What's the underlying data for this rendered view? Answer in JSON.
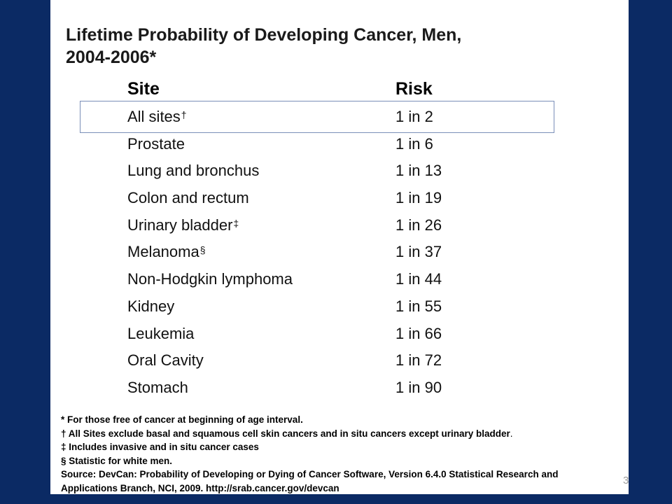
{
  "slide": {
    "title_line1": "Lifetime Probability of Developing Cancer, Men,",
    "title_line2": "2004-2006*",
    "table": {
      "headers": {
        "site": "Site",
        "risk": "Risk"
      },
      "rows": [
        {
          "site": "All sites",
          "mark": "†",
          "risk": "1 in 2"
        },
        {
          "site": "Prostate",
          "mark": "",
          "risk": "1 in 6"
        },
        {
          "site": "Lung and bronchus",
          "mark": "",
          "risk": "1 in 13"
        },
        {
          "site": "Colon and rectum",
          "mark": "",
          "risk": "1 in 19"
        },
        {
          "site": "Urinary bladder",
          "mark": "‡",
          "risk": "1 in 26"
        },
        {
          "site": "Melanoma",
          "mark": "§",
          "risk": "1 in 37"
        },
        {
          "site": "Non-Hodgkin lymphoma",
          "mark": "",
          "risk": "1 in 44"
        },
        {
          "site": "Kidney",
          "mark": "",
          "risk": "1 in 55"
        },
        {
          "site": "Leukemia",
          "mark": "",
          "risk": "1 in 66"
        },
        {
          "site": "Oral Cavity",
          "mark": "",
          "risk": "1 in 72"
        },
        {
          "site": "Stomach",
          "mark": "",
          "risk": "1 in 90"
        }
      ]
    },
    "footnotes": {
      "asterisk": "* For those free of cancer at beginning of age interval.",
      "dagger": "† All Sites exclude basal and squamous cell skin cancers and in situ cancers except urinary bladder",
      "dagger_end": ".",
      "double_dagger": "‡ Includes invasive and in situ cancer cases",
      "section": "§ Statistic for white men.",
      "source_line1": "Source: DevCan: Probability of Developing or Dying of Cancer Software, Version 6.4.0 Statistical Research and",
      "source_line2": "Applications Branch, NCI, 2009. http://srab.cancer.gov/devcan"
    },
    "page_number": "3"
  },
  "colors": {
    "frame": "#0b2a64",
    "highlight_border": "#7a8fb8"
  }
}
